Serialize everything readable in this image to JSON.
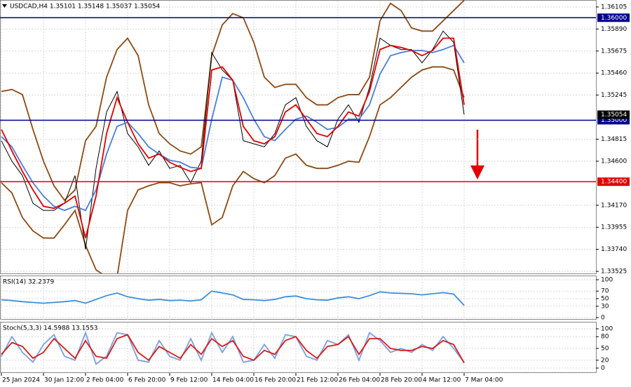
{
  "chart_data": [
    {
      "type": "line",
      "title": "USDCAD,H4  1.35101 1.35148 1.35037 1.35054",
      "categories": [
        "25 Jan 2024",
        null,
        null,
        null,
        "30 Jan 12:00",
        null,
        null,
        null,
        "2 Feb 04:00",
        null,
        null,
        null,
        "6 Feb 20:00",
        null,
        null,
        null,
        "9 Feb 12:00",
        null,
        null,
        null,
        "14 Feb 04:00",
        null,
        null,
        null,
        "16 Feb 20:00",
        null,
        null,
        null,
        "21 Feb 12:00",
        null,
        null,
        null,
        "26 Feb 04:00",
        null,
        null,
        null,
        "28 Feb 20:00",
        null,
        null,
        null,
        "4 Mar 12:00",
        null,
        null,
        null,
        "7 Mar 04:00"
      ],
      "series": [
        {
          "color": "#8b4a14",
          "values": [
            1.3528,
            1.353,
            1.3525,
            1.3491,
            1.346,
            1.3436,
            1.3422,
            1.3432,
            1.348,
            1.3494,
            1.3542,
            1.3569,
            1.358,
            1.3563,
            1.3515,
            1.3487,
            1.3477,
            1.347,
            1.3467,
            1.3474,
            1.3563,
            1.3593,
            1.3604,
            1.36,
            1.3576,
            1.3542,
            1.3532,
            1.3535,
            1.3535,
            1.3522,
            1.3515,
            1.3515,
            1.3522,
            1.3525,
            1.3525,
            1.3542,
            1.3597,
            1.3614,
            1.3607,
            1.359,
            1.3587,
            1.3587,
            1.3597,
            1.3607,
            1.3617
          ]
        },
        {
          "color": "#8b4a14",
          "values": [
            1.3439,
            1.3429,
            1.3405,
            1.3392,
            1.3385,
            1.3385,
            1.3398,
            1.3412,
            1.3378,
            1.3354,
            1.3347,
            1.3347,
            1.3412,
            1.3432,
            1.3436,
            1.3439,
            1.3439,
            1.3436,
            1.3438,
            1.3439,
            1.3398,
            1.3405,
            1.3436,
            1.345,
            1.3443,
            1.3439,
            1.3446,
            1.3463,
            1.3467,
            1.3456,
            1.3453,
            1.3453,
            1.3456,
            1.346,
            1.3459,
            1.3484,
            1.3515,
            1.3522,
            1.3532,
            1.3542,
            1.3549,
            1.3552,
            1.3552,
            1.3549,
            1.3522
          ]
        },
        {
          "color": "#000000",
          "values": [
            1.348,
            1.346,
            1.3446,
            1.3419,
            1.3412,
            1.3412,
            1.3419,
            1.3446,
            1.3374,
            1.3453,
            1.3508,
            1.3528,
            1.3487,
            1.3474,
            1.3456,
            1.347,
            1.3453,
            1.3456,
            1.3439,
            1.346,
            1.3566,
            1.3549,
            1.3539,
            1.348,
            1.3477,
            1.3474,
            1.3487,
            1.3515,
            1.3522,
            1.3494,
            1.348,
            1.3474,
            1.3501,
            1.3515,
            1.3498,
            1.3532,
            1.358,
            1.3573,
            1.3569,
            1.3569,
            1.3556,
            1.3569,
            1.3587,
            1.3576,
            1.35054
          ]
        },
        {
          "color": "#4a7fd6",
          "values": [
            1.3484,
            1.3474,
            1.3456,
            1.3439,
            1.3426,
            1.3416,
            1.3412,
            1.3416,
            1.3412,
            1.3432,
            1.3467,
            1.3494,
            1.3498,
            1.3487,
            1.3474,
            1.3467,
            1.3461,
            1.3459,
            1.3454,
            1.3453,
            1.3501,
            1.3542,
            1.3539,
            1.3522,
            1.3501,
            1.3484,
            1.348,
            1.3491,
            1.3501,
            1.3504,
            1.3498,
            1.3491,
            1.3493,
            1.3501,
            1.3501,
            1.3515,
            1.3545,
            1.3563,
            1.3566,
            1.3568,
            1.3568,
            1.3566,
            1.3569,
            1.3573,
            1.3556
          ]
        },
        {
          "color": "#e00000",
          "values": [
            1.3491,
            1.347,
            1.345,
            1.3432,
            1.3416,
            1.3414,
            1.3419,
            1.3426,
            1.3385,
            1.3426,
            1.3487,
            1.3522,
            1.3498,
            1.3477,
            1.3463,
            1.3467,
            1.3459,
            1.3454,
            1.345,
            1.3453,
            1.3549,
            1.3552,
            1.3539,
            1.3494,
            1.348,
            1.3477,
            1.3484,
            1.3508,
            1.3515,
            1.3501,
            1.3487,
            1.3484,
            1.3494,
            1.3508,
            1.3504,
            1.3528,
            1.3569,
            1.3573,
            1.3571,
            1.3568,
            1.3563,
            1.3568,
            1.358,
            1.358,
            1.3515
          ]
        }
      ],
      "ylim": [
        1.33505,
        1.36173
      ],
      "yticks": [
        {
          "value": 1.36105,
          "label": "1.36105"
        },
        {
          "value": 1.3589,
          "label": "1.35890"
        },
        {
          "value": 1.35675,
          "label": "1.35675"
        },
        {
          "value": 1.3546,
          "label": "1.35460"
        },
        {
          "value": 1.35245,
          "label": "1.35245"
        },
        {
          "value": 1.34815,
          "label": "1.34815"
        },
        {
          "value": 1.346,
          "label": "1.34600"
        },
        {
          "value": 1.3417,
          "label": "1.34170"
        },
        {
          "value": 1.33955,
          "label": "1.33955"
        },
        {
          "value": 1.3374,
          "label": "1.33740"
        },
        {
          "value": 1.33525,
          "label": "1.33525"
        }
      ],
      "levels": [
        {
          "value": 1.36,
          "label": "1.36000",
          "color": "#00008b"
        },
        {
          "value": 1.35,
          "label": "1.35000",
          "color": "#00008b"
        },
        {
          "value": 1.344,
          "label": "1.34400",
          "color": "#e00000"
        }
      ],
      "last_price": {
        "value": 1.35054,
        "label": "1.35054"
      },
      "grid": true
    },
    {
      "type": "line",
      "title": "RSI(14) 32.2379",
      "series": [
        {
          "color": "#3b8fd9",
          "values": [
            47,
            45,
            42,
            40,
            38,
            40,
            42,
            45,
            38,
            48,
            58,
            65,
            55,
            50,
            46,
            48,
            45,
            46,
            44,
            47,
            70,
            65,
            60,
            48,
            47,
            45,
            48,
            55,
            57,
            50,
            47,
            46,
            52,
            55,
            50,
            58,
            68,
            65,
            64,
            63,
            60,
            63,
            66,
            62,
            32.2379
          ]
        }
      ],
      "ylim": [
        0,
        100
      ],
      "yticks": [
        0,
        30,
        50,
        70,
        100
      ],
      "grid": true
    },
    {
      "type": "line",
      "title": "Stoch(5,3,3) 14.5988 13.1553",
      "series": [
        {
          "color": "#7b9fe0",
          "values": [
            30,
            80,
            40,
            15,
            60,
            85,
            30,
            20,
            90,
            10,
            30,
            90,
            85,
            20,
            15,
            70,
            30,
            20,
            75,
            20,
            90,
            40,
            80,
            15,
            20,
            60,
            25,
            85,
            80,
            30,
            20,
            70,
            60,
            85,
            20,
            90,
            70,
            40,
            50,
            40,
            60,
            45,
            80,
            50,
            14.5988
          ]
        },
        {
          "color": "#d81b1b",
          "values": [
            35,
            65,
            55,
            25,
            40,
            75,
            50,
            25,
            70,
            30,
            25,
            75,
            85,
            40,
            20,
            55,
            40,
            25,
            60,
            35,
            75,
            55,
            70,
            30,
            20,
            45,
            35,
            70,
            80,
            45,
            25,
            55,
            60,
            80,
            35,
            75,
            75,
            50,
            45,
            45,
            55,
            50,
            70,
            60,
            13.1553
          ]
        }
      ],
      "ylim": [
        0,
        100
      ],
      "yticks": [
        0,
        20,
        50,
        80,
        100
      ],
      "grid": true
    }
  ]
}
